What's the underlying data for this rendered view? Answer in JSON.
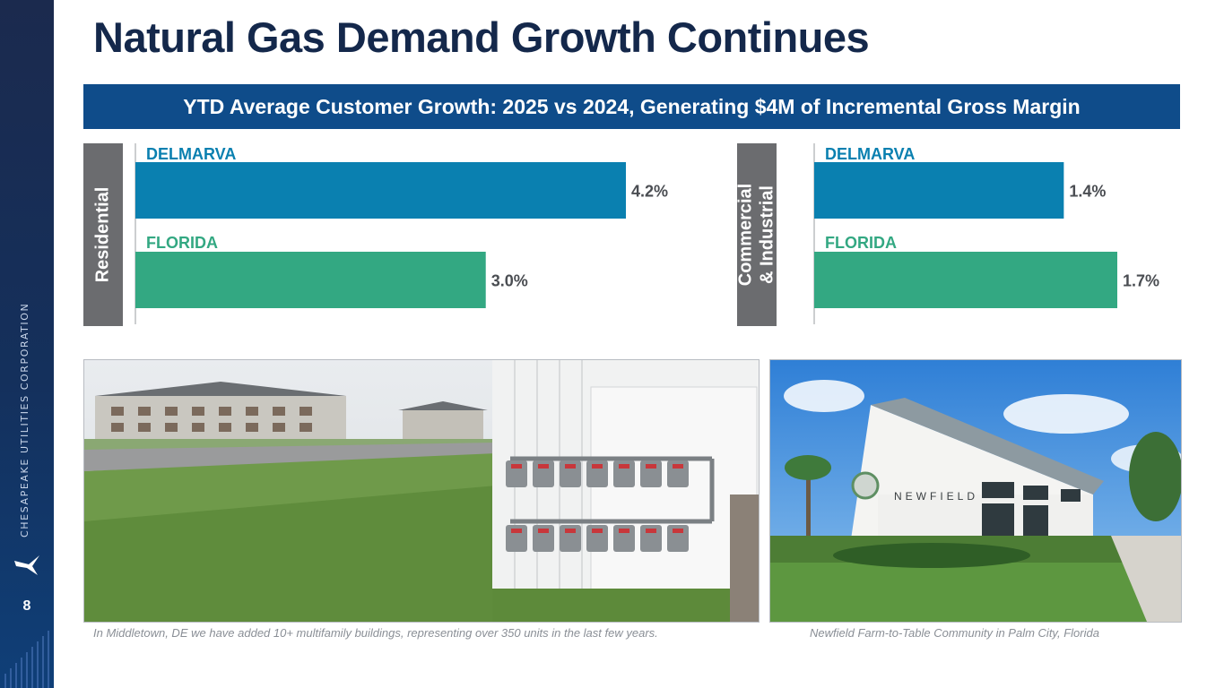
{
  "title": "Natural Gas Demand Growth Continues",
  "banner": "YTD Average Customer Growth: 2025 vs 2024, Generating $4M of Incremental Gross Margin",
  "sidebar": {
    "brand": "CHESAPEAKE UTILITIES CORPORATION",
    "page_number": "8",
    "logo_icon": "osprey-logo-icon"
  },
  "colors": {
    "delmarva": "#0a80b0",
    "florida": "#33a882",
    "segment_label_bg": "#6b6c6f",
    "title": "#14284b",
    "banner": "#0f4c8a"
  },
  "chart_data": [
    {
      "type": "bar",
      "orientation": "horizontal",
      "segment": "Residential",
      "categories": [
        "DELMARVA",
        "FLORIDA"
      ],
      "values": [
        4.2,
        3.0
      ],
      "value_labels": [
        "4.2%",
        "3.0%"
      ],
      "unit": "%"
    },
    {
      "type": "bar",
      "orientation": "horizontal",
      "segment": "Commercial & Industrial",
      "segment_lines": [
        "Commercial",
        "& Industrial"
      ],
      "categories": [
        "DELMARVA",
        "FLORIDA"
      ],
      "values": [
        1.4,
        1.7
      ],
      "value_labels": [
        "1.4%",
        "1.7%"
      ],
      "unit": "%"
    }
  ],
  "photos": {
    "left_caption": "In Middletown, DE we have added 10+ multifamily buildings, representing over 350 units in the last few years.",
    "right_caption": "Newfield Farm-to-Table Community in Palm City, Florida",
    "newfield_sign": "NEWFIELD"
  }
}
